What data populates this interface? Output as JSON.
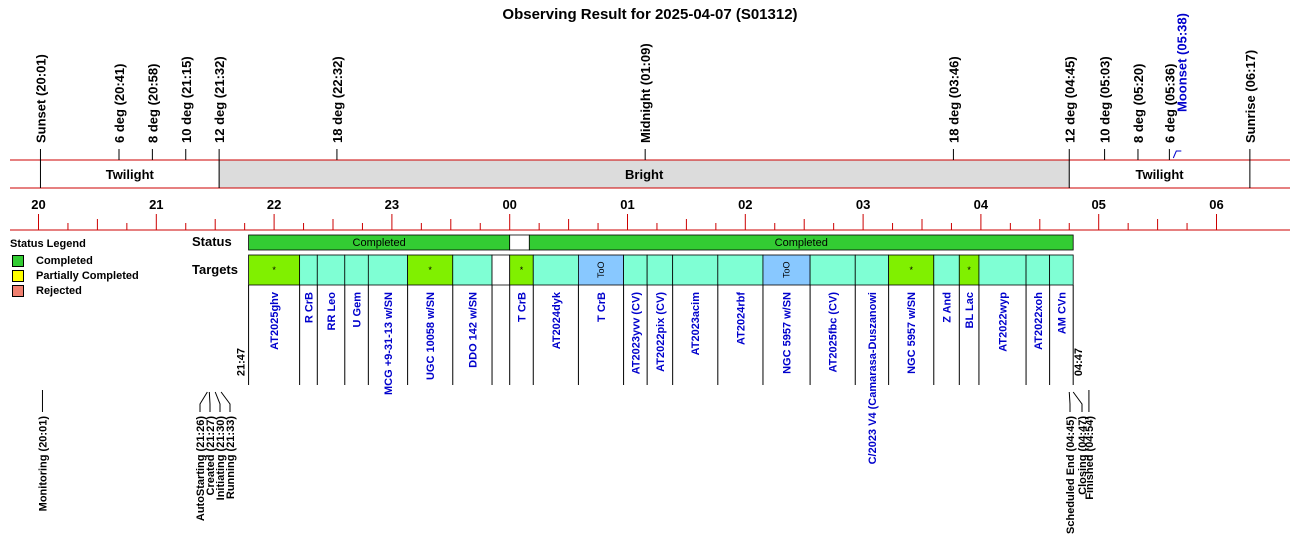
{
  "title": "Observing Result for 2025-04-07 (S01312)",
  "colors": {
    "axis_red": "#cc0000",
    "completed": "#33cc33",
    "target": "#7fffd4",
    "marked": "#80f000",
    "too": "#88c8ff",
    "partial": "#ffff00",
    "rejected": "#f08070",
    "twilight_bg": "#ffffff",
    "bright_bg": "#dcdcdc",
    "link": "#0000cc"
  },
  "top_events": [
    {
      "label": "Sunset (20:01)",
      "t": "20:01"
    },
    {
      "label": "6 deg (20:41)",
      "t": "20:41"
    },
    {
      "label": "8 deg (20:58)",
      "t": "20:58"
    },
    {
      "label": "10 deg (21:15)",
      "t": "21:15"
    },
    {
      "label": "12 deg (21:32)",
      "t": "21:32"
    },
    {
      "label": "18 deg (22:32)",
      "t": "22:32"
    },
    {
      "label": "Midnight (01:09)",
      "t": "01:09"
    },
    {
      "label": "18 deg (03:46)",
      "t": "03:46"
    },
    {
      "label": "12 deg (04:45)",
      "t": "04:45"
    },
    {
      "label": "10 deg (05:03)",
      "t": "05:03"
    },
    {
      "label": "8 deg (05:20)",
      "t": "05:20"
    },
    {
      "label": "6 deg (05:36)",
      "t": "05:36"
    },
    {
      "label": "Moonset (05:38)",
      "t": "05:38",
      "moon": true
    },
    {
      "label": "Sunrise (06:17)",
      "t": "06:17"
    }
  ],
  "bands": [
    {
      "label": "Twilight",
      "from": "20:01",
      "to": "21:32",
      "type": "twilight"
    },
    {
      "label": "Bright",
      "from": "21:32",
      "to": "04:45",
      "type": "bright"
    },
    {
      "label": "Twilight",
      "from": "04:45",
      "to": "06:17",
      "type": "twilight"
    }
  ],
  "hours": [
    "20",
    "21",
    "22",
    "23",
    "00",
    "01",
    "02",
    "03",
    "04",
    "05",
    "06"
  ],
  "status_label": "Status",
  "targets_label": "Targets",
  "status_segments": [
    {
      "label": "Completed",
      "from": "21:47",
      "to": "00:00",
      "state": "completed"
    },
    {
      "label": "",
      "from": "00:00",
      "to": "00:10",
      "state": "empty"
    },
    {
      "label": "Completed",
      "from": "00:10",
      "to": "04:47",
      "state": "completed"
    }
  ],
  "targets": [
    {
      "name": "AT2025ghv",
      "from": "21:47",
      "to": "22:13",
      "mark": "*",
      "kind": "marked"
    },
    {
      "name": "R CrB",
      "from": "22:13",
      "to": "22:22",
      "mark": "",
      "kind": "target"
    },
    {
      "name": "RR Leo",
      "from": "22:22",
      "to": "22:36",
      "mark": "",
      "kind": "target"
    },
    {
      "name": "U Gem",
      "from": "22:36",
      "to": "22:48",
      "mark": "",
      "kind": "target"
    },
    {
      "name": "MCG +9-31-13 w/SN",
      "from": "22:48",
      "to": "23:08",
      "mark": "",
      "kind": "target"
    },
    {
      "name": "UGC 10058 w/SN",
      "from": "23:08",
      "to": "23:31",
      "mark": "*",
      "kind": "marked"
    },
    {
      "name": "DDO 142 w/SN",
      "from": "23:31",
      "to": "23:51",
      "mark": "",
      "kind": "target"
    },
    {
      "name": "",
      "from": "23:51",
      "to": "00:00",
      "mark": "",
      "kind": "empty"
    },
    {
      "name": "T CrB",
      "from": "00:00",
      "to": "00:12",
      "mark": "*",
      "kind": "marked"
    },
    {
      "name": "AT2024dyk",
      "from": "00:12",
      "to": "00:35",
      "mark": "",
      "kind": "target"
    },
    {
      "name": "T CrB",
      "from": "00:35",
      "to": "00:58",
      "mark": "ToO",
      "kind": "too"
    },
    {
      "name": "AT2023yvv (CV)",
      "from": "00:58",
      "to": "01:10",
      "mark": "",
      "kind": "target"
    },
    {
      "name": "AT2022pix (CV)",
      "from": "01:10",
      "to": "01:23",
      "mark": "",
      "kind": "target"
    },
    {
      "name": "AT2023acim",
      "from": "01:23",
      "to": "01:46",
      "mark": "",
      "kind": "target"
    },
    {
      "name": "AT2024rbf",
      "from": "01:46",
      "to": "02:09",
      "mark": "",
      "kind": "target"
    },
    {
      "name": "NGC 5957 w/SN",
      "from": "02:09",
      "to": "02:33",
      "mark": "ToO",
      "kind": "too"
    },
    {
      "name": "AT2025fbc (CV)",
      "from": "02:33",
      "to": "02:56",
      "mark": "",
      "kind": "target"
    },
    {
      "name": "C/2023 V4 (Camarasa-Duszanowi",
      "from": "02:56",
      "to": "03:13",
      "mark": "",
      "kind": "target"
    },
    {
      "name": "NGC 5957 w/SN",
      "from": "03:13",
      "to": "03:36",
      "mark": "*",
      "kind": "marked"
    },
    {
      "name": "Z And",
      "from": "03:36",
      "to": "03:49",
      "mark": "",
      "kind": "target"
    },
    {
      "name": "BL Lac",
      "from": "03:49",
      "to": "03:59",
      "mark": "*",
      "kind": "marked"
    },
    {
      "name": "AT2022wyp",
      "from": "03:59",
      "to": "04:23",
      "mark": "",
      "kind": "target"
    },
    {
      "name": "AT2022xoh",
      "from": "04:23",
      "to": "04:35",
      "mark": "",
      "kind": "target"
    },
    {
      "name": "AM CVn",
      "from": "04:35",
      "to": "04:47",
      "mark": "",
      "kind": "target"
    }
  ],
  "range_start_label": "21:47",
  "range_end_label": "04:47",
  "bottom_events": [
    {
      "label": "Monitoring (20:01)",
      "t": "20:01",
      "fan": false
    },
    {
      "label": "AutoStarting (21:26)",
      "t": "21:26",
      "fan": true
    },
    {
      "label": "Created (21:27)",
      "t": "21:27",
      "fan": true
    },
    {
      "label": "Initiating (21:30)",
      "t": "21:30",
      "fan": true
    },
    {
      "label": "Running (21:33)",
      "t": "21:33",
      "fan": true
    },
    {
      "label": "Scheduled End (04:45)",
      "t": "04:45",
      "fan": true
    },
    {
      "label": "Closing (04:47)",
      "t": "04:47",
      "fan": true
    },
    {
      "label": "Finished (04:54)",
      "t": "04:54",
      "fan": false
    }
  ],
  "legend": {
    "title": "Status Legend",
    "items": [
      {
        "label": "Completed",
        "color": "#33cc33"
      },
      {
        "label": "Partially Completed",
        "color": "#ffff00"
      },
      {
        "label": "Rejected",
        "color": "#f08070"
      }
    ]
  }
}
